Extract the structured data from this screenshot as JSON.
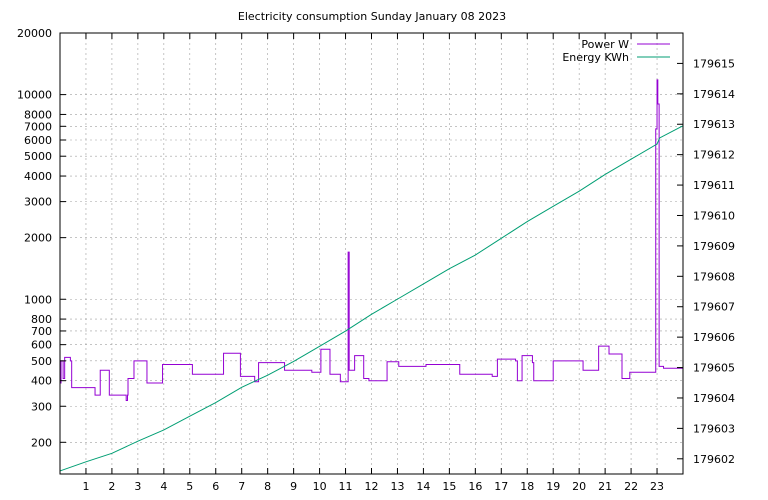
{
  "chart_data": {
    "type": "line",
    "title": "Electricity consumption Sunday January 08 2023",
    "xlim": [
      0,
      24
    ],
    "x_ticks": [
      1,
      2,
      3,
      4,
      5,
      6,
      7,
      8,
      9,
      10,
      11,
      12,
      13,
      14,
      15,
      16,
      17,
      18,
      19,
      20,
      21,
      22,
      23
    ],
    "y_left": {
      "scale": "log",
      "lim": [
        140,
        20000
      ],
      "ticks": [
        200,
        300,
        400,
        500,
        600,
        700,
        800,
        1000,
        2000,
        3000,
        4000,
        5000,
        6000,
        7000,
        8000,
        10000,
        20000
      ]
    },
    "y_right": {
      "lim": [
        179601.5,
        179616
      ],
      "ticks": [
        179602,
        179603,
        179604,
        179605,
        179606,
        179607,
        179608,
        179609,
        179610,
        179611,
        179612,
        179613,
        179614,
        179615
      ]
    },
    "grid": true,
    "legend": "top-right",
    "series": [
      {
        "name": "Power W",
        "axis": "left",
        "color": "#9400d3",
        "style": "step",
        "points": [
          [
            0.0,
            390
          ],
          [
            0.04,
            500
          ],
          [
            0.12,
            410
          ],
          [
            0.18,
            520
          ],
          [
            0.4,
            500
          ],
          [
            0.45,
            370
          ],
          [
            1.35,
            340
          ],
          [
            1.55,
            450
          ],
          [
            1.9,
            340
          ],
          [
            2.55,
            320
          ],
          [
            2.6,
            340
          ],
          [
            2.62,
            410
          ],
          [
            2.85,
            500
          ],
          [
            3.35,
            390
          ],
          [
            3.95,
            480
          ],
          [
            5.1,
            430
          ],
          [
            6.3,
            545
          ],
          [
            6.95,
            420
          ],
          [
            7.5,
            395
          ],
          [
            7.65,
            490
          ],
          [
            8.65,
            450
          ],
          [
            9.7,
            440
          ],
          [
            10.05,
            570
          ],
          [
            10.4,
            430
          ],
          [
            10.8,
            395
          ],
          [
            11.1,
            1700
          ],
          [
            11.14,
            450
          ],
          [
            11.35,
            530
          ],
          [
            11.7,
            410
          ],
          [
            11.9,
            400
          ],
          [
            12.6,
            495
          ],
          [
            13.05,
            470
          ],
          [
            14.1,
            480
          ],
          [
            15.4,
            430
          ],
          [
            16.65,
            420
          ],
          [
            16.85,
            510
          ],
          [
            17.55,
            500
          ],
          [
            17.62,
            400
          ],
          [
            17.8,
            530
          ],
          [
            18.2,
            490
          ],
          [
            18.25,
            400
          ],
          [
            19.0,
            500
          ],
          [
            20.15,
            450
          ],
          [
            20.75,
            590
          ],
          [
            21.15,
            540
          ],
          [
            21.65,
            410
          ],
          [
            21.95,
            440
          ],
          [
            22.95,
            6800
          ],
          [
            23.0,
            11800
          ],
          [
            23.03,
            9000
          ],
          [
            23.08,
            470
          ],
          [
            23.25,
            460
          ],
          [
            24.0,
            460
          ]
        ]
      },
      {
        "name": "Energy KWh",
        "axis": "right",
        "color": "#009e73",
        "style": "line",
        "points": [
          [
            0.0,
            179601.6
          ],
          [
            1.0,
            179601.9
          ],
          [
            2.0,
            179602.18
          ],
          [
            3.0,
            179602.58
          ],
          [
            4.0,
            179602.95
          ],
          [
            5.0,
            179603.4
          ],
          [
            6.0,
            179603.85
          ],
          [
            7.0,
            179604.35
          ],
          [
            8.0,
            179604.75
          ],
          [
            9.0,
            179605.2
          ],
          [
            10.0,
            179605.7
          ],
          [
            11.0,
            179606.2
          ],
          [
            12.0,
            179606.75
          ],
          [
            13.0,
            179607.25
          ],
          [
            14.0,
            179607.75
          ],
          [
            15.0,
            179608.25
          ],
          [
            16.0,
            179608.7
          ],
          [
            17.0,
            179609.25
          ],
          [
            18.0,
            179609.8
          ],
          [
            19.0,
            179610.3
          ],
          [
            20.0,
            179610.8
          ],
          [
            21.0,
            179611.35
          ],
          [
            22.0,
            179611.85
          ],
          [
            23.0,
            179612.35
          ],
          [
            23.1,
            179612.55
          ],
          [
            24.0,
            179612.95
          ]
        ]
      }
    ]
  }
}
